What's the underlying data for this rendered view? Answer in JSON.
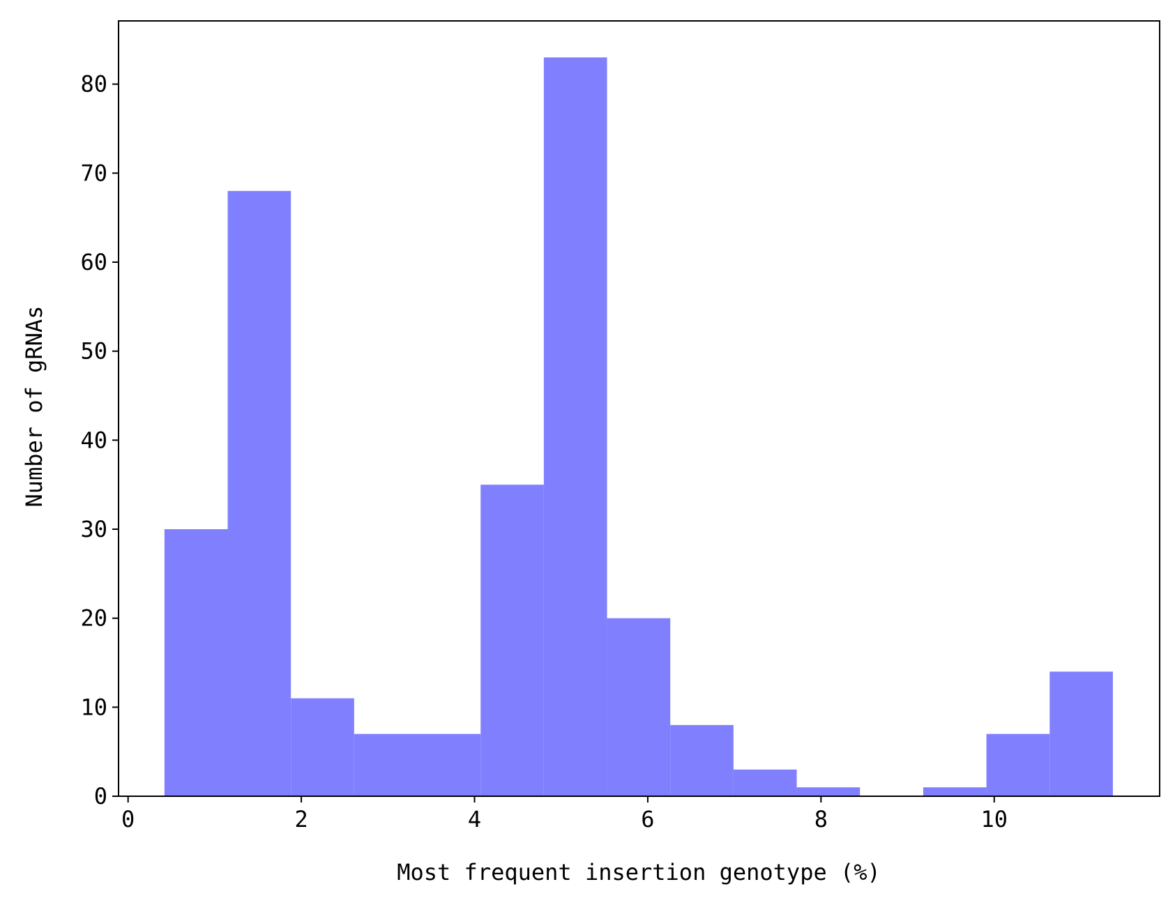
{
  "chart_data": {
    "type": "histogram",
    "xlabel": "Most frequent insertion genotype (%)",
    "ylabel": "Number of gRNAs",
    "bins": [
      0.42,
      1.15,
      1.88,
      2.61,
      3.34,
      4.07,
      4.8,
      5.53,
      6.26,
      6.99,
      7.72,
      8.45,
      9.18,
      9.91,
      10.64,
      11.37
    ],
    "values": [
      30,
      68,
      11,
      7,
      7,
      35,
      83,
      20,
      8,
      3,
      1,
      0,
      1,
      7,
      14
    ],
    "color": "#8080ff",
    "xlim": [
      -0.11,
      11.91
    ],
    "xticks": [
      0,
      2,
      4,
      6,
      8,
      10
    ],
    "ylim": [
      0,
      87.1
    ],
    "yticks": [
      0,
      10,
      20,
      30,
      40,
      50,
      60,
      70,
      80
    ]
  }
}
